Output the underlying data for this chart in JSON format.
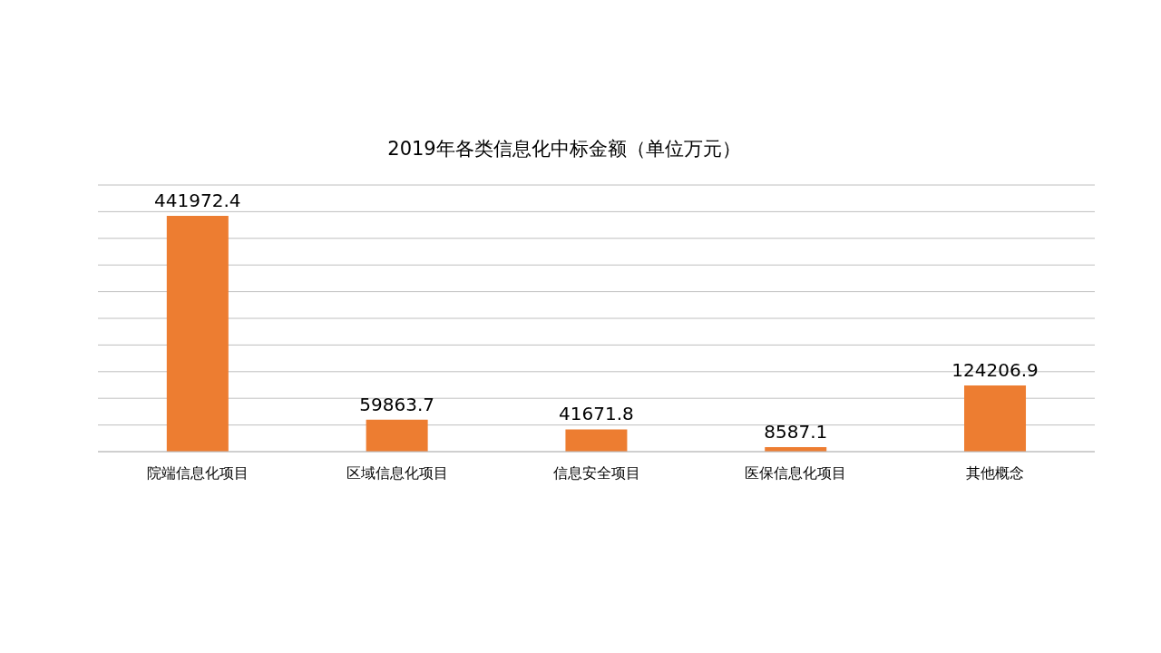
{
  "chart_data": {
    "type": "bar",
    "title": "2019年各类信息化中标金额（单位万元）",
    "categories": [
      "院端信息化项目",
      "区域信息化项目",
      "信息安全项目",
      "医保信息化项目",
      "其他概念"
    ],
    "values": [
      441972.4,
      59863.7,
      41671.8,
      8587.1,
      124206.9
    ],
    "color": "#ed7d31",
    "ylim": [
      0,
      500000
    ],
    "yticks": [
      {
        "value": 0,
        "label": null
      },
      {
        "value": 50000,
        "label": null
      },
      {
        "value": 100000,
        "label": null
      },
      {
        "value": 150000,
        "label": null
      },
      {
        "value": 200000,
        "label": null
      },
      {
        "value": 250000,
        "label": null
      },
      {
        "value": 300000,
        "label": null
      },
      {
        "value": 350000,
        "label": null
      },
      {
        "value": 400000,
        "label": null
      },
      {
        "value": 450000,
        "label": null
      },
      {
        "value": 500000,
        "label": null
      }
    ],
    "grid": "y",
    "data_labels": true,
    "tick_labels": "x"
  }
}
